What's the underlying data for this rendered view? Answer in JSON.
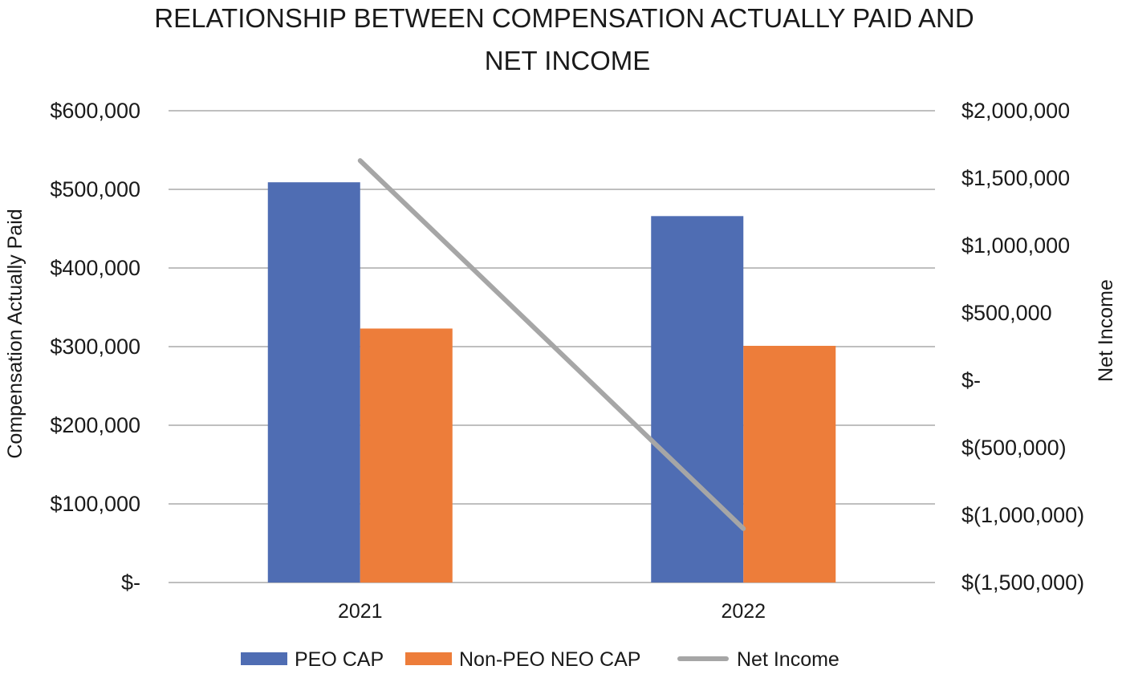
{
  "chart_data": {
    "type": "bar",
    "title_lines": [
      "RELATIONSHIP BETWEEN COMPENSATION ACTUALLY PAID AND",
      "NET INCOME"
    ],
    "categories": [
      "2021",
      "2022"
    ],
    "series": [
      {
        "name": "PEO CAP",
        "type": "bar",
        "axis": "left",
        "color": "#4F6DB3",
        "values": [
          509000,
          466000
        ]
      },
      {
        "name": "Non-PEO NEO CAP",
        "type": "bar",
        "axis": "left",
        "color": "#ED7D3A",
        "values": [
          323000,
          301000
        ]
      },
      {
        "name": "Net Income",
        "type": "line",
        "axis": "right",
        "color": "#A6A6A6",
        "values": [
          1630000,
          -1100000
        ]
      }
    ],
    "ylabel_left": "Compensation Actually Paid",
    "ylabel_right": "Net Income",
    "ylim_left": [
      0,
      600000
    ],
    "ylim_right": [
      -1500000,
      2000000
    ],
    "left_ticks": [
      "$-",
      "$100,000",
      "$200,000",
      "$300,000",
      "$400,000",
      "$500,000",
      "$600,000"
    ],
    "right_ticks": [
      "$(1,500,000)",
      "$(1,000,000)",
      "$(500,000)",
      "$-",
      "$500,000",
      "$1,000,000",
      "$1,500,000",
      "$2,000,000"
    ],
    "gridline_color": "#BFBFBF",
    "legend_position": "bottom"
  }
}
